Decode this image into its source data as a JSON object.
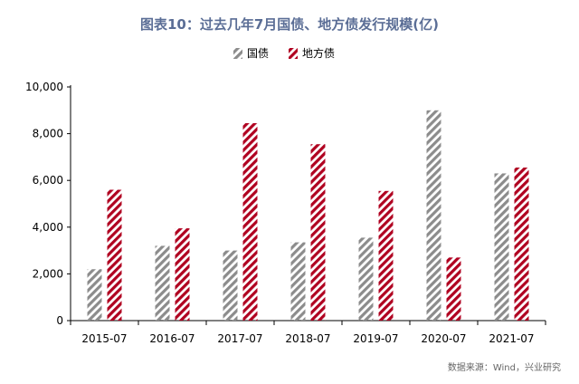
{
  "chart_data": {
    "type": "bar",
    "title": "图表10：过去几年7月国债、地方债发行规模(亿)",
    "source": "数据来源：Wind，兴业研究",
    "categories": [
      "2015-07",
      "2016-07",
      "2017-07",
      "2018-07",
      "2019-07",
      "2020-07",
      "2021-07"
    ],
    "series": [
      {
        "name": "国债",
        "color": "#8c8c8c",
        "values": [
          2200,
          3200,
          3000,
          3350,
          3550,
          9000,
          6300
        ]
      },
      {
        "name": "地方债",
        "color": "#b00020",
        "values": [
          5600,
          3950,
          8450,
          7550,
          5550,
          2700,
          6550
        ]
      }
    ],
    "ylim": [
      0,
      10000
    ],
    "yticks": [
      0,
      2000,
      4000,
      6000,
      8000,
      10000
    ],
    "ytick_labels": [
      "0",
      "2,000",
      "4,000",
      "6,000",
      "8,000",
      "10,000"
    ],
    "legend_position": "top-center",
    "grid": false,
    "fill_pattern": "diagonal-hatch",
    "title_color": "#5b6e96"
  }
}
